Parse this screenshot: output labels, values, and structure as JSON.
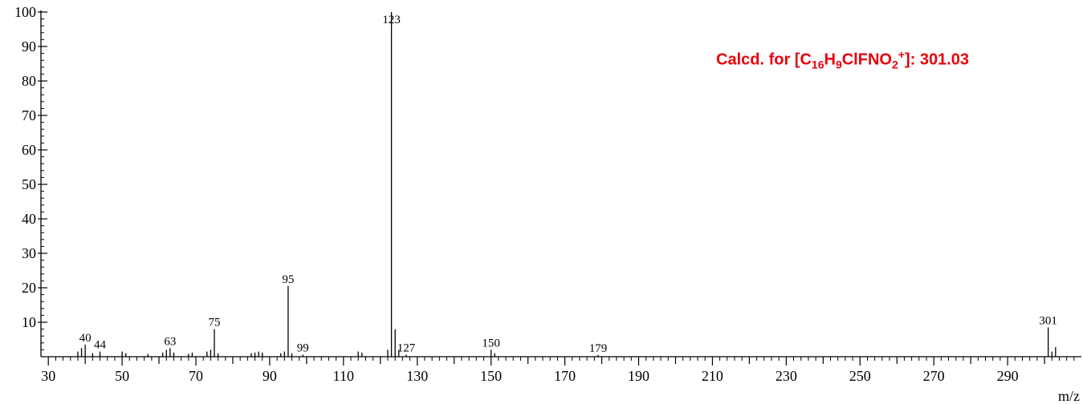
{
  "chart_data": {
    "type": "bar",
    "xlabel": "m/z",
    "ylabel": "",
    "xlim": [
      28,
      310
    ],
    "ylim": [
      0,
      100
    ],
    "x_ticks": [
      "30",
      "50",
      "70",
      "90",
      "110",
      "130",
      "150",
      "170",
      "190",
      "210",
      "230",
      "250",
      "270",
      "290"
    ],
    "y_ticks": [
      "10",
      "20",
      "30",
      "40",
      "50",
      "60",
      "70",
      "80",
      "90",
      "100"
    ],
    "annotation": {
      "prefix": "Calcd. for [C",
      "sub1": "16",
      "mid1": "H",
      "sub2": "9",
      "mid2": "ClFNO",
      "sub3": "2",
      "sup": "+",
      "suffix": "]: 301.03",
      "color": "#e8000b"
    },
    "peaks": [
      {
        "mz": 38,
        "intensity": 1.5
      },
      {
        "mz": 39,
        "intensity": 2.5
      },
      {
        "mz": 40,
        "intensity": 3.5,
        "label": "40"
      },
      {
        "mz": 42,
        "intensity": 1.0
      },
      {
        "mz": 44,
        "intensity": 1.5,
        "label": "44"
      },
      {
        "mz": 50,
        "intensity": 1.5
      },
      {
        "mz": 51,
        "intensity": 1.0
      },
      {
        "mz": 57,
        "intensity": 0.8
      },
      {
        "mz": 61,
        "intensity": 1.2
      },
      {
        "mz": 62,
        "intensity": 2.0
      },
      {
        "mz": 63,
        "intensity": 2.5,
        "label": "63"
      },
      {
        "mz": 64,
        "intensity": 1.2
      },
      {
        "mz": 68,
        "intensity": 0.8
      },
      {
        "mz": 69,
        "intensity": 1.2
      },
      {
        "mz": 73,
        "intensity": 1.5
      },
      {
        "mz": 74,
        "intensity": 2.0
      },
      {
        "mz": 75,
        "intensity": 8.0,
        "label": "75"
      },
      {
        "mz": 76,
        "intensity": 1.0
      },
      {
        "mz": 85,
        "intensity": 1.0
      },
      {
        "mz": 86,
        "intensity": 1.2
      },
      {
        "mz": 87,
        "intensity": 1.5
      },
      {
        "mz": 88,
        "intensity": 1.2
      },
      {
        "mz": 93,
        "intensity": 1.0
      },
      {
        "mz": 94,
        "intensity": 1.5
      },
      {
        "mz": 95,
        "intensity": 20.5,
        "label": "95"
      },
      {
        "mz": 96,
        "intensity": 1.0
      },
      {
        "mz": 99,
        "intensity": 0.6,
        "label": "99"
      },
      {
        "mz": 114,
        "intensity": 1.5
      },
      {
        "mz": 115,
        "intensity": 1.2
      },
      {
        "mz": 122,
        "intensity": 2.0
      },
      {
        "mz": 123,
        "intensity": 100,
        "label": "123"
      },
      {
        "mz": 124,
        "intensity": 8.0
      },
      {
        "mz": 125,
        "intensity": 2.0
      },
      {
        "mz": 127,
        "intensity": 0.6,
        "label": "127"
      },
      {
        "mz": 150,
        "intensity": 2.0,
        "label": "150"
      },
      {
        "mz": 151,
        "intensity": 1.0
      },
      {
        "mz": 179,
        "intensity": 0.5,
        "label": "179"
      },
      {
        "mz": 301,
        "intensity": 8.5,
        "label": "301"
      },
      {
        "mz": 302,
        "intensity": 1.5
      },
      {
        "mz": 303,
        "intensity": 2.8
      }
    ]
  }
}
